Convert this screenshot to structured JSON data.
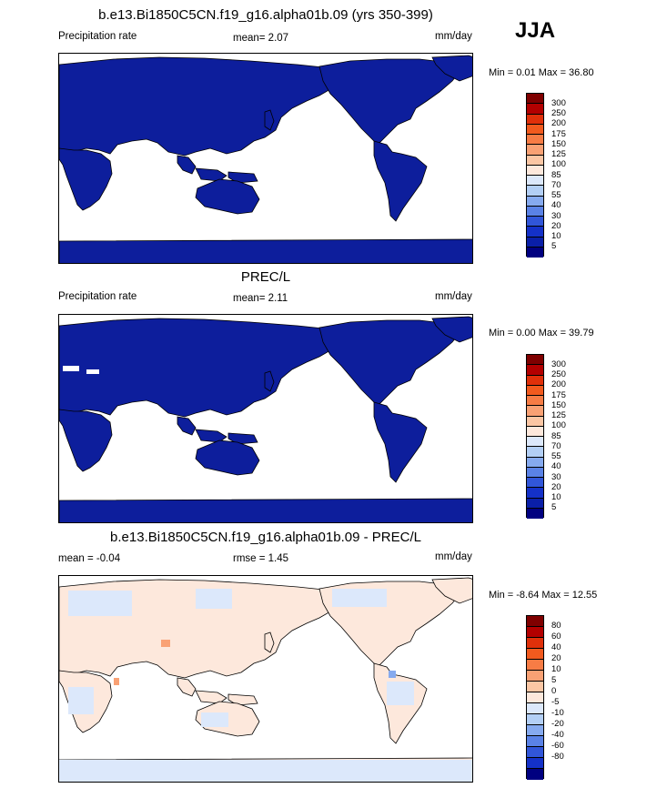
{
  "header": {
    "season": "JJA"
  },
  "panels": [
    {
      "title": "b.e13.Bi1850C5CN.f19_g16.alpha01b.09 (yrs 350-399)",
      "left_label": "Precipitation rate",
      "center_label": "mean=   2.07",
      "right_label": "mm/day",
      "minmax": "Min =   0.01 Max =  36.80",
      "colorbar_labels": [
        "300",
        "250",
        "200",
        "175",
        "150",
        "125",
        "100",
        "85",
        "70",
        "55",
        "40",
        "30",
        "20",
        "10",
        "5"
      ]
    },
    {
      "title": "PREC/L",
      "left_label": "Precipitation rate",
      "center_label": "mean=   2.11",
      "right_label": "mm/day",
      "minmax": "Min =   0.00 Max =  39.79",
      "colorbar_labels": [
        "300",
        "250",
        "200",
        "175",
        "150",
        "125",
        "100",
        "85",
        "70",
        "55",
        "40",
        "30",
        "20",
        "10",
        "5"
      ]
    },
    {
      "title": "b.e13.Bi1850C5CN.f19_g16.alpha01b.09 - PREC/L",
      "left_label": "mean =  -0.04",
      "center_label": "rmse =   1.45",
      "right_label": "mm/day",
      "minmax": "Min =  -8.64 Max =  12.55",
      "colorbar_labels": [
        "80",
        "60",
        "40",
        "20",
        "10",
        "5",
        "0",
        "-5",
        "-10",
        "-20",
        "-40",
        "-60",
        "-80"
      ]
    }
  ],
  "colors": {
    "precip_scale": [
      "#7f0000",
      "#b30000",
      "#e0300a",
      "#f25a1e",
      "#f77c45",
      "#f9a174",
      "#fbc6a4",
      "#fde8dc",
      "#dce8fb",
      "#b3cff5",
      "#86aaef",
      "#5a82e6",
      "#3156d9",
      "#1431c8",
      "#0a1fa8",
      "#000080"
    ],
    "diff_scale": [
      "#7f0000",
      "#b30000",
      "#e0300a",
      "#f25a1e",
      "#f77c45",
      "#f9a174",
      "#fbc6a4",
      "#fde8dc",
      "#dce8fb",
      "#b3cff5",
      "#86aaef",
      "#5a82e6",
      "#3156d9",
      "#1431c8",
      "#000080"
    ],
    "land_precip": "#0d1e9c",
    "land_diff_light_red": "#fde8dc",
    "land_diff_light_blue": "#dce8fb"
  }
}
